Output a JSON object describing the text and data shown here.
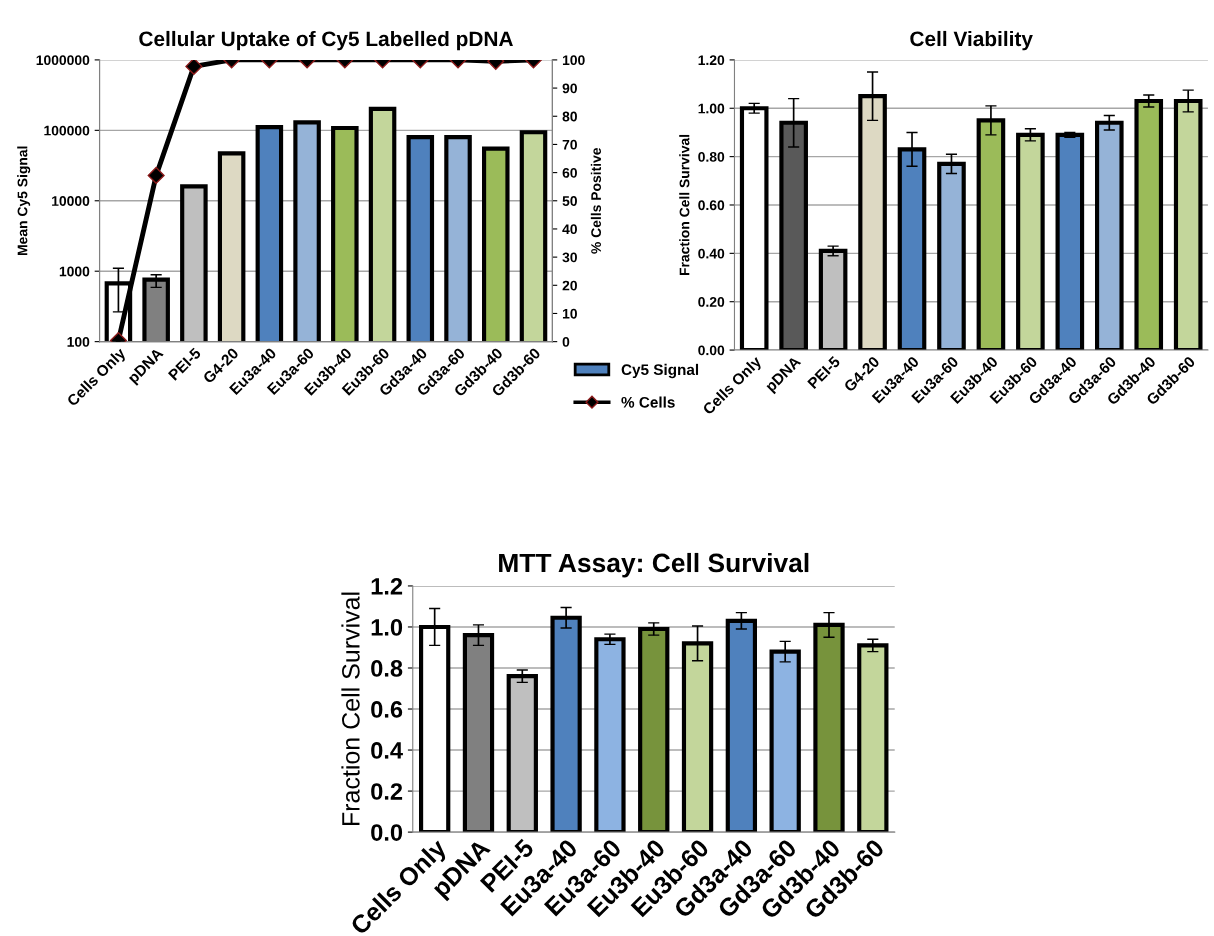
{
  "chart_data": [
    {
      "type": "bar",
      "title": "Cellular Uptake of Cy5 Labelled pDNA",
      "ylabel": "Mean Cy5 Signal",
      "y2label": "% Cells Positive",
      "categories": [
        "Cells Only",
        "pDNA",
        "PEI-5",
        "G4-20",
        "Eu3a-40",
        "Eu3a-60",
        "Eu3b-40",
        "Eu3b-60",
        "Gd3a-40",
        "Gd3a-60",
        "Gd3b-40",
        "Gd3b-60"
      ],
      "series": [
        {
          "name": "Cy5 Signal",
          "type": "bar",
          "color": "#4f81bd",
          "colors": [
            "#ffffff",
            "#808080",
            "#bfbfbf",
            "#ddd9c3",
            "#4f81bd",
            "#95b3d7",
            "#9bbb59",
            "#c3d69b",
            "#4f81bd",
            "#95b3d7",
            "#9bbb59",
            "#c3d69b"
          ],
          "values": [
            670,
            760,
            16000,
            47000,
            111000,
            130000,
            108000,
            202000,
            80000,
            80000,
            55000,
            94000
          ],
          "errors": [
            [
              265,
              1100
            ],
            [
              590,
              890
            ],
            null,
            null,
            null,
            null,
            null,
            null,
            null,
            null,
            null,
            null
          ]
        },
        {
          "name": "% Cells",
          "type": "line",
          "axis": "y2",
          "color": "#000000",
          "values": [
            0.4,
            59,
            97.7,
            100,
            100,
            100,
            100,
            100,
            100,
            100,
            99.5,
            100
          ]
        }
      ],
      "log": "y",
      "ylim": [
        100,
        1000000
      ],
      "yticks": [
        100,
        1000,
        10000,
        100000,
        1000000
      ],
      "y2lim": [
        0,
        100
      ],
      "y2ticks": [
        0,
        10,
        20,
        30,
        40,
        50,
        60,
        70,
        80,
        90,
        100
      ],
      "grid": "y",
      "legend": "bottom right",
      "marker": "diamond"
    },
    {
      "type": "bar",
      "title": "Cell Viability",
      "ylabel": "Fraction Cell Survival",
      "categories": [
        "Cells Only",
        "pDNA",
        "PEI-5",
        "G4-20",
        "Eu3a-40",
        "Eu3a-60",
        "Eu3b-40",
        "Eu3b-60",
        "Gd3a-40",
        "Gd3a-60",
        "Gd3b-40",
        "Gd3b-60"
      ],
      "colors": [
        "#ffffff",
        "#595959",
        "#bfbfbf",
        "#ddd9c3",
        "#4f81bd",
        "#95b3d7",
        "#9bbb59",
        "#c3d69b",
        "#4f81bd",
        "#95b3d7",
        "#9bbb59",
        "#c3d69b"
      ],
      "values": [
        1.0,
        0.94,
        0.41,
        1.05,
        0.83,
        0.77,
        0.95,
        0.89,
        0.89,
        0.94,
        1.03,
        1.03
      ],
      "errors": [
        0.02,
        0.1,
        0.02,
        0.1,
        0.07,
        0.04,
        0.06,
        0.025,
        0.01,
        0.03,
        0.025,
        0.045
      ],
      "ylim": [
        0,
        1.2
      ],
      "yticks": [
        {
          "value": 0,
          "label": "0.00"
        },
        {
          "value": 0.2,
          "label": "0.20"
        },
        {
          "value": 0.4,
          "label": "0.40"
        },
        {
          "value": 0.6,
          "label": "0.60"
        },
        {
          "value": 0.8,
          "label": "0.80"
        },
        {
          "value": 1.0,
          "label": "1.00"
        },
        {
          "value": 1.2,
          "label": "1.20"
        }
      ],
      "grid": "y"
    },
    {
      "type": "bar",
      "title": "MTT Assay: Cell Survival",
      "ylabel": "Fraction Cell Survival",
      "categories": [
        "Cells Only",
        "pDNA",
        "PEI-5",
        "Eu3a-40",
        "Eu3a-60",
        "Eu3b-40",
        "Eu3b-60",
        "Gd3a-40",
        "Gd3a-60",
        "Gd3b-40",
        "Gd3b-60"
      ],
      "colors": [
        "#ffffff",
        "#808080",
        "#bfbfbf",
        "#4f81bd",
        "#8db3e2",
        "#77933c",
        "#c3d69b",
        "#4f81bd",
        "#8db3e2",
        "#77933c",
        "#c3d69b"
      ],
      "values": [
        1.0,
        0.96,
        0.76,
        1.045,
        0.94,
        0.99,
        0.92,
        1.03,
        0.88,
        1.01,
        0.91
      ],
      "errors": [
        0.09,
        0.05,
        0.03,
        0.05,
        0.025,
        0.03,
        0.085,
        0.04,
        0.05,
        0.06,
        0.03
      ],
      "ylim": [
        0,
        1.2
      ],
      "yticks": [
        {
          "value": 0,
          "label": "0.0"
        },
        {
          "value": 0.2,
          "label": "0.2"
        },
        {
          "value": 0.4,
          "label": "0.4"
        },
        {
          "value": 0.6,
          "label": "0.6"
        },
        {
          "value": 0.8,
          "label": "0.8"
        },
        {
          "value": 1.0,
          "label": "1.0"
        },
        {
          "value": 1.2,
          "label": "1.2"
        }
      ],
      "grid": "y"
    }
  ]
}
